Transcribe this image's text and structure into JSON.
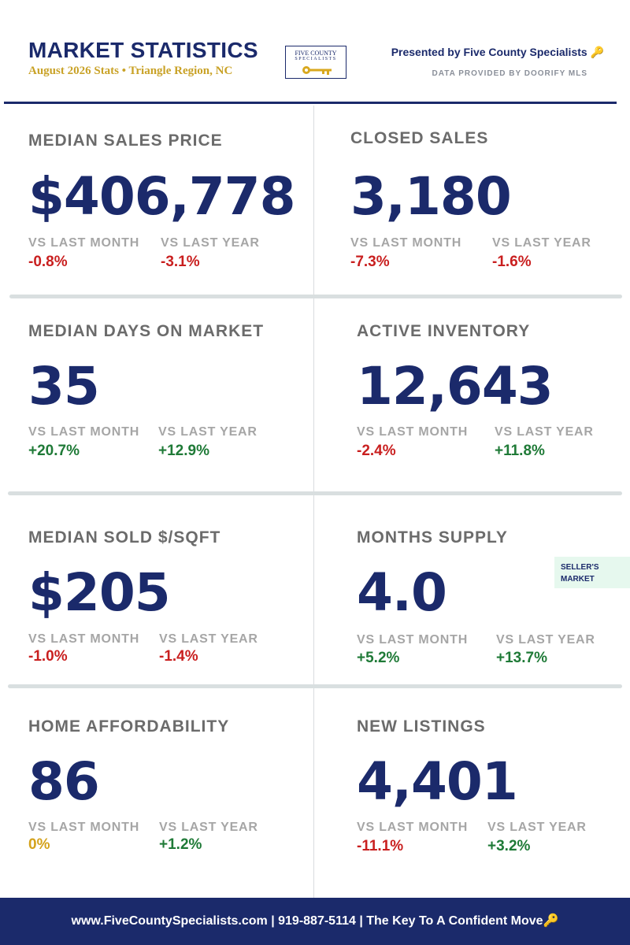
{
  "header": {
    "title": "MARKET STATISTICS",
    "subtitle": "August 2026 Stats • Triangle Region, NC",
    "logo_line1": "FIVE COUNTY",
    "logo_line2": "SPECIALISTS",
    "presented_by": "Presented by Five County Specialists 🔑",
    "data_source": "DATA PROVIDED BY DOORIFY MLS"
  },
  "colors": {
    "brand_navy": "#1b2a6b",
    "accent_gold": "#c9a227",
    "negative": "#c91f1f",
    "positive": "#1f7a37",
    "neutral": "#d4a21c",
    "badge_bg": "#e6f8ee"
  },
  "comparison_labels": {
    "month": "VS LAST MONTH",
    "year": "VS LAST YEAR"
  },
  "stats": [
    {
      "label": "MEDIAN SALES PRICE",
      "value": "$406,778",
      "vs_month": "-0.8%",
      "vs_year": "-3.1%"
    },
    {
      "label": "CLOSED SALES",
      "value": "3,180",
      "vs_month": "-7.3%",
      "vs_year": "-1.6%"
    },
    {
      "label": "MEDIAN DAYS ON MARKET",
      "value": "35",
      "vs_month": "+20.7%",
      "vs_year": "+12.9%"
    },
    {
      "label": "ACTIVE INVENTORY",
      "value": "12,643",
      "vs_month": "-2.4%",
      "vs_year": "+11.8%"
    },
    {
      "label": "MEDIAN SOLD $/SQFT",
      "value": "$205",
      "vs_month": "-1.0%",
      "vs_year": "-1.4%"
    },
    {
      "label": "MONTHS SUPPLY",
      "value": "4.0",
      "vs_month": "+5.2%",
      "vs_year": "+13.7%",
      "badge_line1": "SELLER'S",
      "badge_line2": "MARKET"
    },
    {
      "label": "HOME AFFORDABILITY",
      "value": "86",
      "vs_month": "0%",
      "vs_year": "+1.2%"
    },
    {
      "label": "NEW LISTINGS",
      "value": "4,401",
      "vs_month": "-11.1%",
      "vs_year": "+3.2%"
    }
  ],
  "footer": {
    "text": "www.FiveCountySpecialists.com  |  919-887-5114  |  The Key To A Confident Move🔑"
  }
}
